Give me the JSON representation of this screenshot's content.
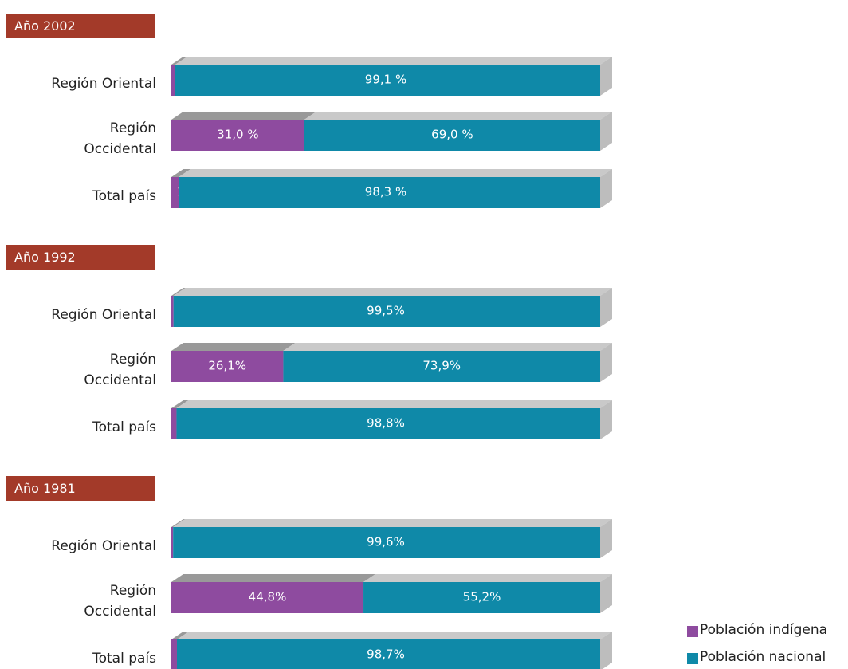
{
  "chart_data": [
    {
      "type": "stacked_bar_h",
      "title": "Año 2002",
      "categories": [
        "Región Oriental",
        "Región\nOccidental",
        "Total país"
      ],
      "series": [
        {
          "color": "#8e4b9f",
          "values": [
            0.9,
            31.0,
            1.7
          ],
          "value_labels": [
            "0,9 %",
            "31,0 %",
            "1,7 %"
          ]
        },
        {
          "color": "#0f89a8",
          "values": [
            99.1,
            69.0,
            98.3
          ],
          "value_labels": [
            "99,1 %",
            "69,0 %",
            "98,3 %"
          ]
        }
      ]
    },
    {
      "type": "stacked_bar_h",
      "title": "Año 1992",
      "categories": [
        "Región Oriental",
        "Región\nOccidental",
        "Total país"
      ],
      "series": [
        {
          "color": "#8e4b9f",
          "values": [
            0.5,
            26.1,
            1.2
          ],
          "value_labels": [
            "0,5%",
            "26,1%",
            "1,2%"
          ]
        },
        {
          "color": "#0f89a8",
          "values": [
            99.5,
            73.9,
            98.8
          ],
          "value_labels": [
            "99,5%",
            "73,9%",
            "98,8%"
          ]
        }
      ]
    },
    {
      "type": "stacked_bar_h",
      "title": "Año 1981",
      "categories": [
        "Región Oriental",
        "Región\nOccidental",
        "Total país"
      ],
      "series": [
        {
          "name": "Población indígena",
          "color": "#8e4b9f",
          "values": [
            0.4,
            44.8,
            1.3
          ],
          "value_labels": [
            "0,4%",
            "44,8%",
            "1,3%"
          ]
        },
        {
          "name": "Población nacional",
          "color": "#0f89a8",
          "values": [
            99.6,
            55.2,
            98.7
          ],
          "value_labels": [
            "99,6%",
            "55,2%",
            "98,7%"
          ]
        }
      ]
    }
  ]
}
